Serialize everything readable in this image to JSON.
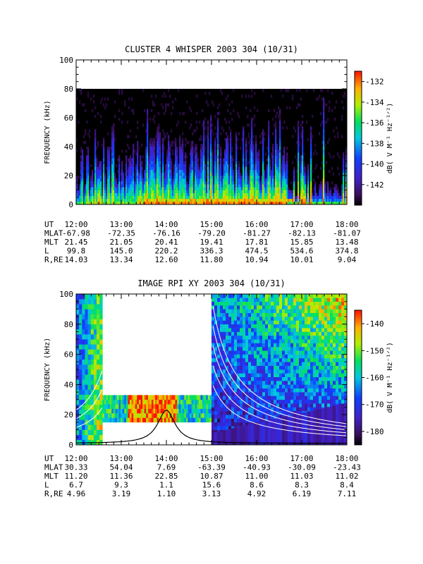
{
  "chart_data": [
    {
      "type": "heatmap",
      "title": "CLUSTER 4 WHISPER 2003 304 (10/31)",
      "ylabel": "FREQUENCY (kHz)",
      "colorbar_label": "dB( V M⁻¹ Hz⁻¹ᐟ²)",
      "xlim": [
        "12:00",
        "18:00"
      ],
      "ylim": [
        0,
        100
      ],
      "y_ticks": [
        "0",
        "20",
        "40",
        "60",
        "80",
        "100"
      ],
      "x_ticks": [
        "12:00",
        "13:00",
        "14:00",
        "15:00",
        "16:00",
        "17:00",
        "18:00"
      ],
      "data_range_khz": [
        0,
        80
      ],
      "colorbar_range": [
        -144,
        -131
      ],
      "colorbar_ticks": [
        "-132",
        "-134",
        "-136",
        "-138",
        "-140",
        "-142"
      ],
      "ephemeris": [
        {
          "name": "UT",
          "values": [
            "12:00",
            "13:00",
            "14:00",
            "15:00",
            "16:00",
            "17:00",
            "18:00"
          ]
        },
        {
          "name": "MLAT",
          "values": [
            "-67.98",
            "-72.35",
            "-76.16",
            "-79.20",
            "-81.27",
            "-82.13",
            "-81.07"
          ]
        },
        {
          "name": "MLT",
          "values": [
            "21.45",
            "21.05",
            "20.41",
            "19.41",
            "17.81",
            "15.85",
            "13.48"
          ]
        },
        {
          "name": "L",
          "values": [
            "99.8",
            "145.0",
            "220.2",
            "336.3",
            "474.5",
            "534.6",
            "374.8"
          ]
        },
        {
          "name": "R,RE",
          "values": [
            "14.03",
            "13.34",
            "12.60",
            "11.80",
            "10.94",
            "10.01",
            "9.04"
          ]
        }
      ]
    },
    {
      "type": "heatmap",
      "title": "IMAGE RPI XY 2003 304 (10/31)",
      "ylabel": "FREQUENCY (kHz)",
      "colorbar_label": "dB( V M⁻¹ Hz⁻¹ᐟ²)",
      "xlim": [
        "12:00",
        "18:00"
      ],
      "ylim": [
        0,
        100
      ],
      "y_ticks": [
        "0",
        "20",
        "40",
        "60",
        "80",
        "100"
      ],
      "x_ticks": [
        "12:00",
        "13:00",
        "14:00",
        "15:00",
        "16:00",
        "17:00",
        "18:00"
      ],
      "colorbar_range": [
        -185,
        -135
      ],
      "colorbar_ticks": [
        "-140",
        "-150",
        "-160",
        "-170",
        "-180"
      ],
      "ephemeris": [
        {
          "name": "UT",
          "values": [
            "12:00",
            "13:00",
            "14:00",
            "15:00",
            "16:00",
            "17:00",
            "18:00"
          ]
        },
        {
          "name": "MLAT",
          "values": [
            "30.33",
            "54.04",
            "7.69",
            "-63.39",
            "-40.93",
            "-30.09",
            "-23.43"
          ]
        },
        {
          "name": "MLT",
          "values": [
            "11.20",
            "11.36",
            "22.85",
            "10.87",
            "11.00",
            "11.03",
            "11.02"
          ]
        },
        {
          "name": "L",
          "values": [
            "6.7",
            "9.3",
            "1.1",
            "15.6",
            "8.6",
            "8.3",
            "8.4"
          ]
        },
        {
          "name": "R,RE",
          "values": [
            "4.96",
            "3.19",
            "1.10",
            "3.13",
            "4.92",
            "6.19",
            "7.11"
          ]
        }
      ]
    }
  ]
}
